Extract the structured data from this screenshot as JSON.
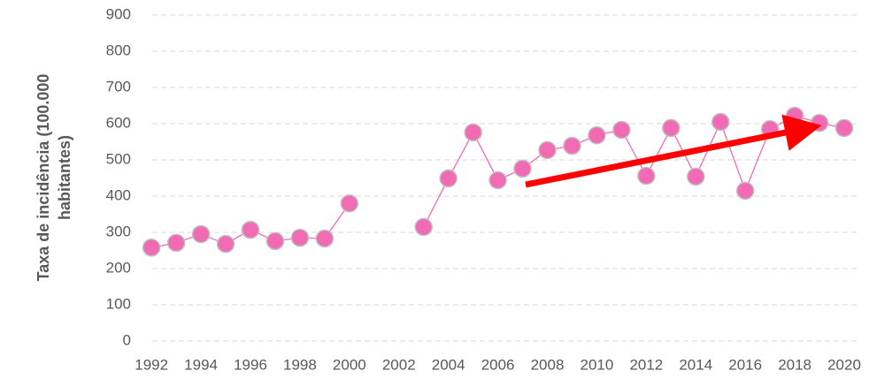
{
  "chart_data": {
    "type": "line",
    "ylabel": [
      "Taxa de incidência (100.000",
      "habitantes)"
    ],
    "x": [
      1992,
      1993,
      1994,
      1995,
      1996,
      1997,
      1998,
      1999,
      2000,
      2001,
      2002,
      2003,
      2004,
      2005,
      2006,
      2007,
      2008,
      2009,
      2010,
      2011,
      2012,
      2013,
      2014,
      2015,
      2016,
      2017,
      2018,
      2019,
      2020
    ],
    "series": [
      {
        "name": "Taxa de incidência",
        "color": "#f06ab4",
        "values": [
          258,
          271,
          295,
          268,
          307,
          276,
          285,
          283,
          380,
          null,
          null,
          315,
          449,
          576,
          444,
          476,
          527,
          539,
          568,
          583,
          456,
          588,
          454,
          605,
          415,
          585,
          622,
          602,
          588
        ]
      }
    ],
    "xlim": [
      1991.6,
      2020.5
    ],
    "xticks": [
      1992,
      1994,
      1996,
      1998,
      2000,
      2002,
      2004,
      2006,
      2008,
      2010,
      2012,
      2014,
      2016,
      2018,
      2020
    ],
    "ylim": [
      0,
      900
    ],
    "yticks": [
      0,
      100,
      200,
      300,
      400,
      500,
      600,
      700,
      800,
      900
    ],
    "grid": true
  }
}
